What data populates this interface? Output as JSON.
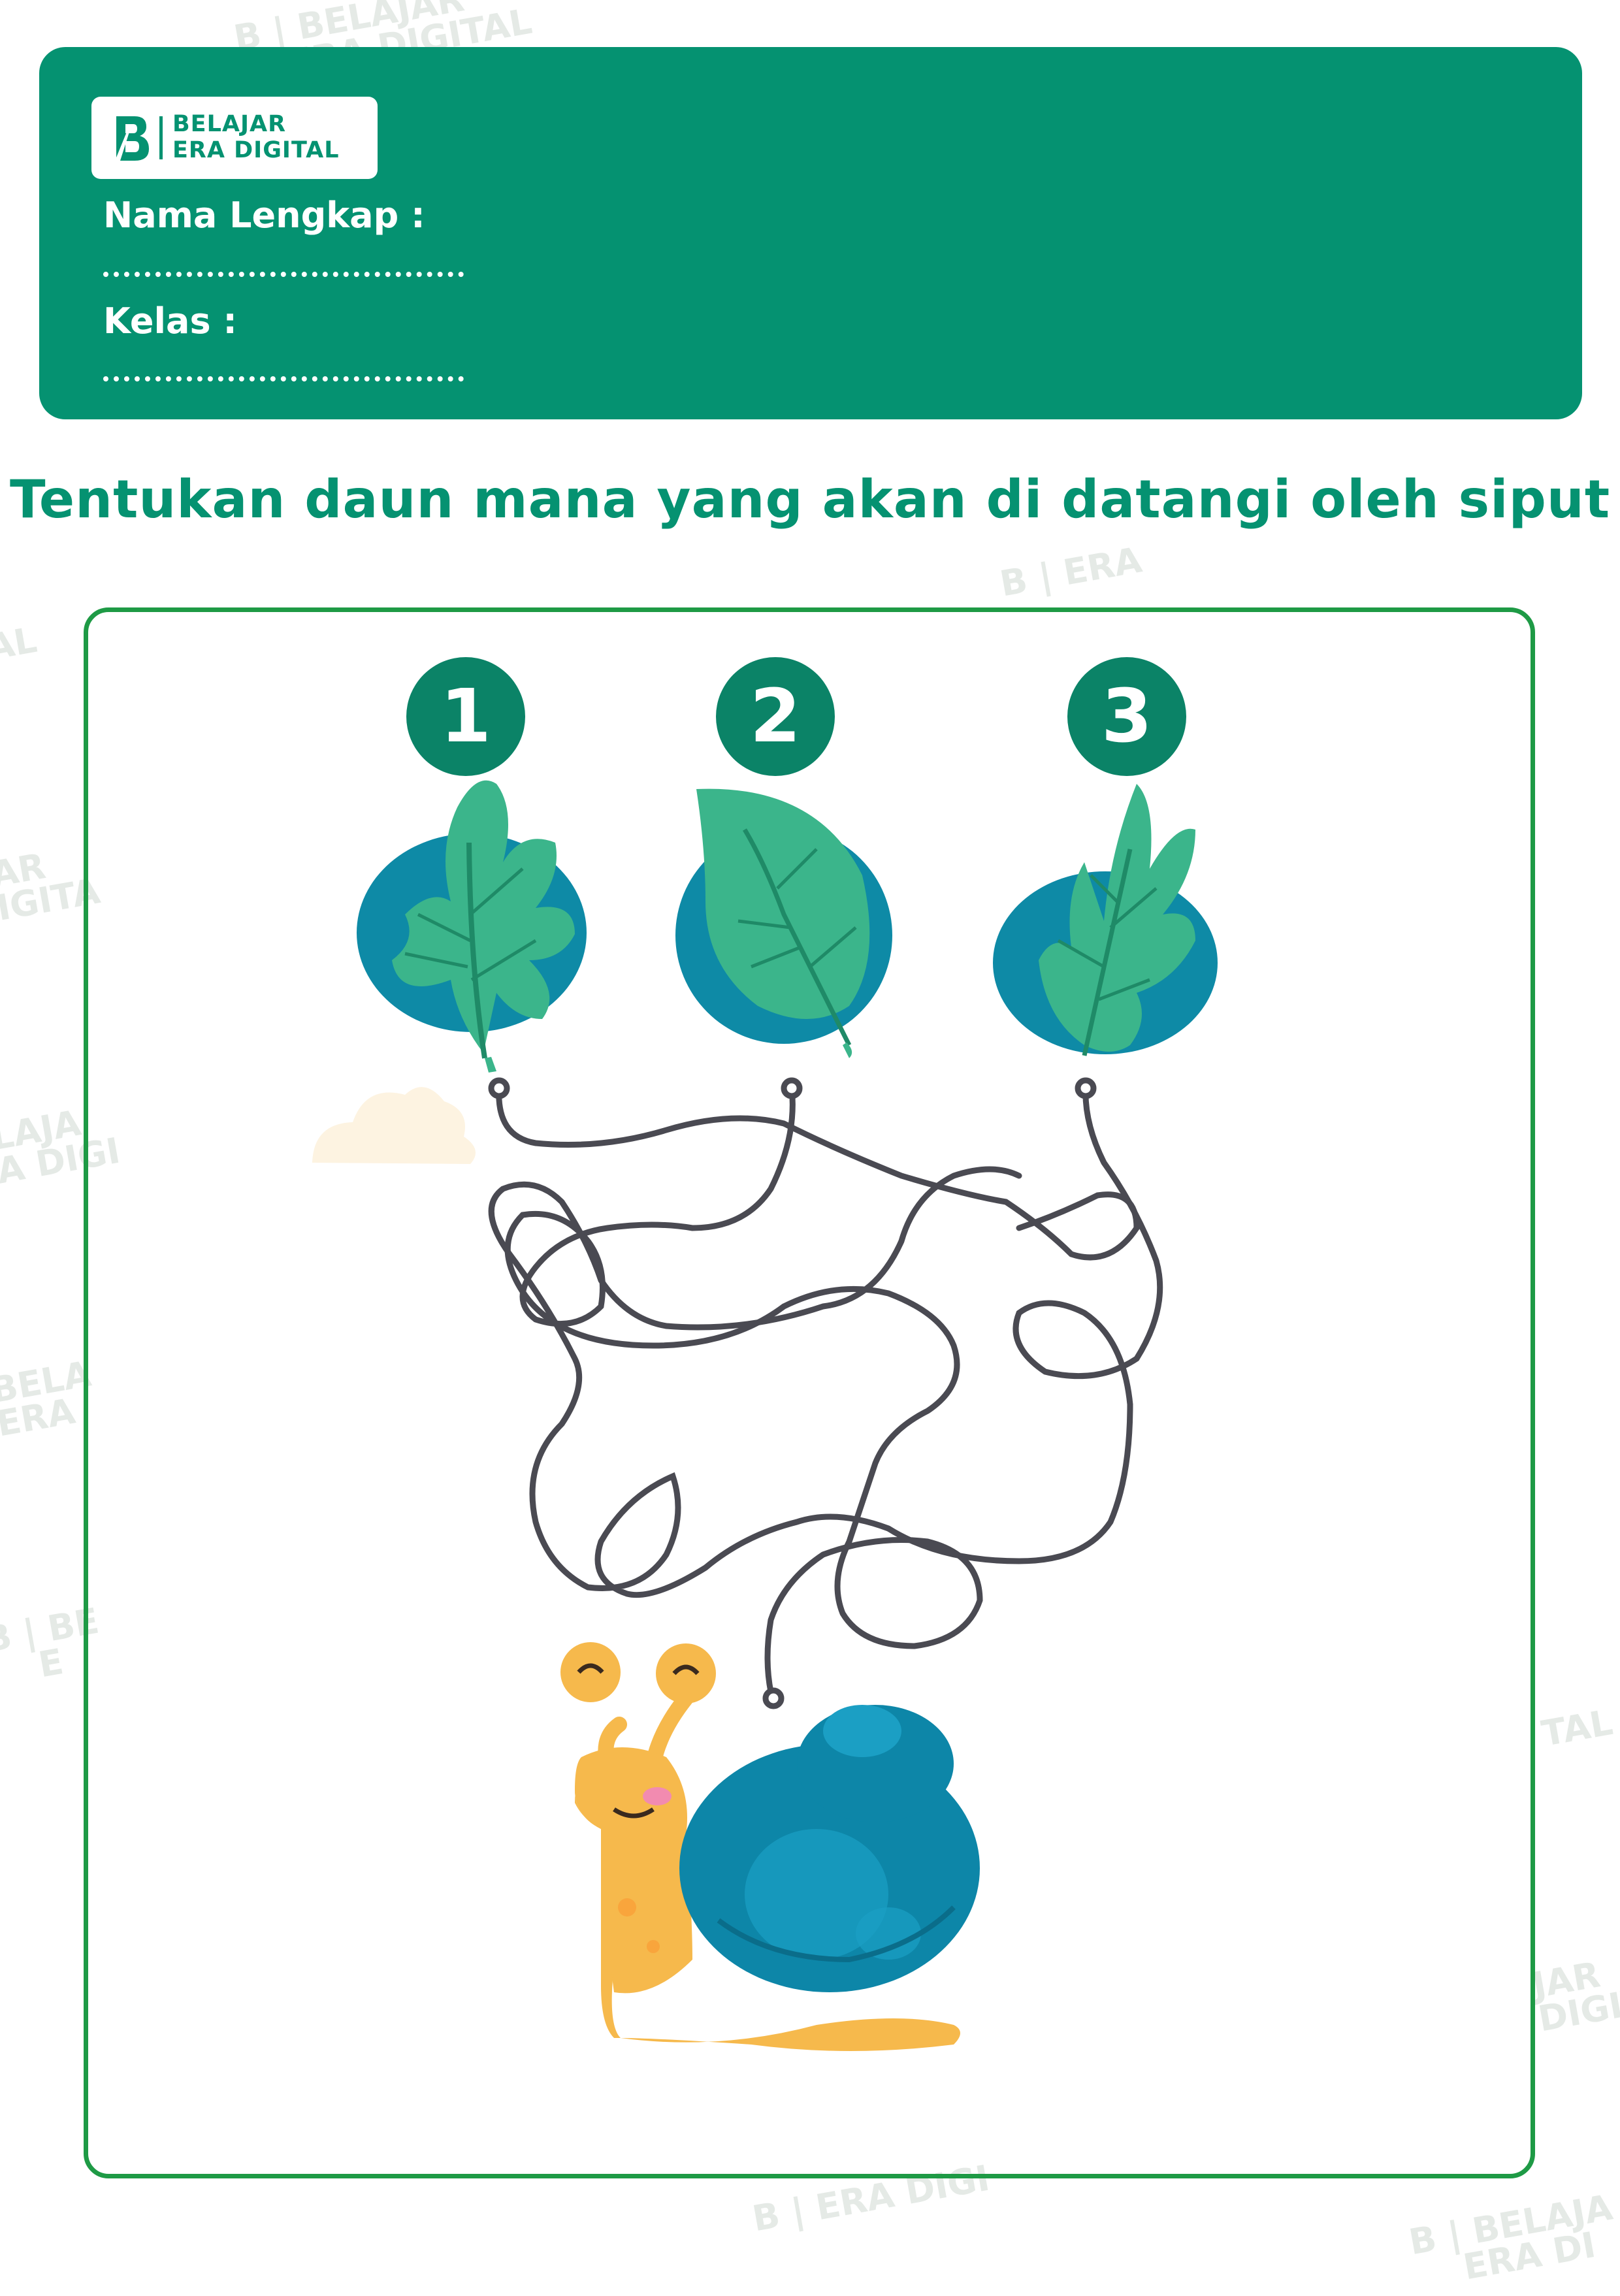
{
  "brand": {
    "line1": "BELAJAR",
    "line2": "ERA DIGITAL",
    "logo_letter": "B"
  },
  "header": {
    "name_label": "Nama Lengkap :",
    "class_label": "Kelas :",
    "name_value": "",
    "class_value": ""
  },
  "instruction": "Tentukan daun mana yang akan di datangi oleh siput",
  "choices": [
    {
      "number": "1",
      "icon": "oak-leaf-icon"
    },
    {
      "number": "2",
      "icon": "round-leaf-icon"
    },
    {
      "number": "3",
      "icon": "fern-leaf-icon"
    }
  ],
  "maze": {
    "start_icon": "snail-icon"
  },
  "colors": {
    "brand_green": "#059271",
    "frame_green": "#1e9a45",
    "leaf_green": "#3bb58b",
    "leaf_backdrop": "#0e8aa6",
    "path": "#4a4a52",
    "snail_body": "#f6b94c",
    "snail_shell": "#0d86a8"
  }
}
